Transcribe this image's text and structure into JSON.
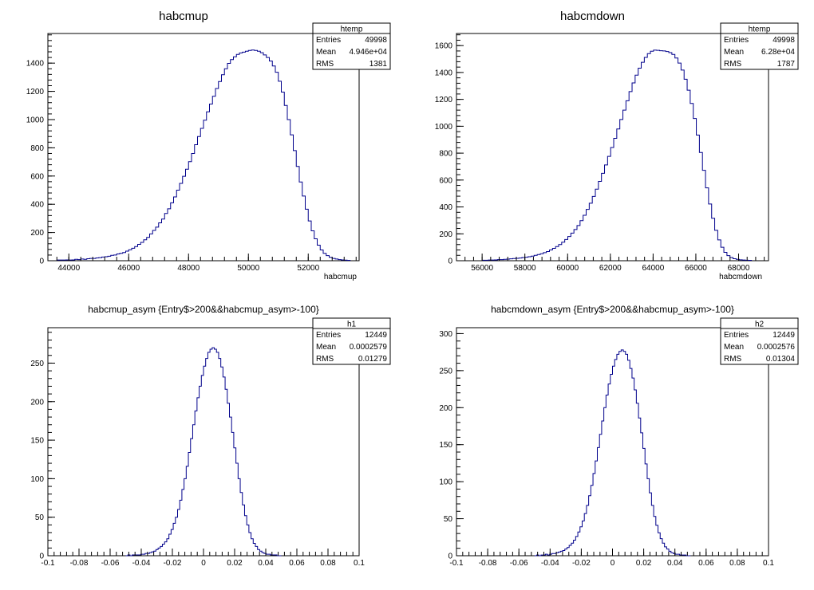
{
  "chart_data": [
    {
      "type": "bar",
      "title": "habcmup",
      "xlabel": "habcmup",
      "ylabel": "",
      "xlim": [
        43300,
        53700
      ],
      "ylim": [
        0,
        1610
      ],
      "xticks": [
        44000,
        46000,
        48000,
        50000,
        52000
      ],
      "yticks": [
        0,
        200,
        400,
        600,
        800,
        1000,
        1200,
        1400
      ],
      "grid": false,
      "line_color": "#00008b",
      "stats": {
        "name": "htemp",
        "rows": [
          {
            "label": "Entries",
            "value": "49998"
          },
          {
            "label": "Mean",
            "value": "4.946e+04"
          },
          {
            "label": "RMS",
            "value": "1381"
          }
        ]
      },
      "bin_range": [
        43600,
        53400
      ],
      "values": [
        5,
        5,
        5,
        6,
        5,
        6,
        10,
        8,
        12,
        10,
        14,
        16,
        16,
        20,
        22,
        26,
        28,
        32,
        38,
        40,
        48,
        52,
        58,
        68,
        78,
        88,
        100,
        116,
        130,
        148,
        165,
        190,
        215,
        238,
        268,
        295,
        335,
        368,
        410,
        452,
        500,
        548,
        598,
        648,
        702,
        760,
        822,
        880,
        938,
        996,
        1055,
        1110,
        1165,
        1220,
        1270,
        1318,
        1360,
        1398,
        1425,
        1445,
        1462,
        1472,
        1478,
        1484,
        1490,
        1493,
        1490,
        1484,
        1474,
        1458,
        1440,
        1415,
        1380,
        1335,
        1272,
        1195,
        1100,
        1000,
        892,
        780,
        668,
        558,
        458,
        365,
        282,
        212,
        155,
        110,
        76,
        52,
        36,
        24,
        16,
        12,
        8,
        6,
        4,
        3
      ]
    },
    {
      "type": "bar",
      "title": "habcmdown",
      "xlabel": "habcmdown",
      "ylabel": "",
      "xlim": [
        54800,
        69400
      ],
      "ylim": [
        0,
        1690
      ],
      "xticks": [
        56000,
        58000,
        60000,
        62000,
        64000,
        66000,
        68000
      ],
      "yticks": [
        0,
        200,
        400,
        600,
        800,
        1000,
        1200,
        1400,
        1600
      ],
      "grid": false,
      "line_color": "#00008b",
      "stats": {
        "name": "htemp",
        "rows": [
          {
            "label": "Entries",
            "value": "49998"
          },
          {
            "label": "Mean",
            "value": "6.28e+04"
          },
          {
            "label": "RMS",
            "value": "1787"
          }
        ]
      },
      "bin_range": [
        56000,
        68600
      ],
      "values": [
        4,
        4,
        5,
        5,
        6,
        8,
        8,
        10,
        12,
        14,
        16,
        18,
        20,
        24,
        26,
        30,
        34,
        40,
        46,
        52,
        60,
        68,
        80,
        92,
        105,
        120,
        138,
        158,
        180,
        205,
        232,
        262,
        298,
        338,
        382,
        428,
        478,
        532,
        590,
        650,
        712,
        776,
        842,
        910,
        980,
        1050,
        1120,
        1190,
        1258,
        1322,
        1380,
        1432,
        1476,
        1512,
        1540,
        1558,
        1566,
        1565,
        1562,
        1560,
        1556,
        1548,
        1534,
        1508,
        1470,
        1418,
        1350,
        1268,
        1170,
        1058,
        935,
        805,
        672,
        542,
        422,
        316,
        226,
        155,
        100,
        62,
        38,
        24,
        15,
        10,
        7,
        5,
        4,
        3
      ]
    },
    {
      "type": "bar",
      "title": "habcmup_asym {Entry$>200&&habcmup_asym>-100}",
      "xlabel": "",
      "ylabel": "",
      "xlim": [
        -0.1,
        0.1
      ],
      "ylim": [
        0,
        296
      ],
      "xticks": [
        -0.1,
        -0.08,
        -0.06,
        -0.04,
        -0.02,
        0,
        0.02,
        0.04,
        0.06,
        0.08,
        0.1
      ],
      "yticks": [
        0,
        50,
        100,
        150,
        200,
        250
      ],
      "grid": false,
      "line_color": "#00008b",
      "stats": {
        "name": "h1",
        "rows": [
          {
            "label": "Entries",
            "value": "12449"
          },
          {
            "label": "Mean",
            "value": "0.0002579"
          },
          {
            "label": "RMS",
            "value": "0.01279"
          }
        ]
      },
      "bin_range": [
        -0.05,
        0.05
      ],
      "values": [
        0,
        1,
        0,
        1,
        1,
        1,
        1,
        2,
        2,
        3,
        3,
        4,
        5,
        6,
        8,
        10,
        12,
        15,
        18,
        22,
        28,
        34,
        42,
        50,
        60,
        72,
        86,
        100,
        116,
        134,
        152,
        170,
        188,
        205,
        220,
        234,
        246,
        256,
        264,
        268,
        270,
        268,
        264,
        256,
        245,
        232,
        216,
        198,
        180,
        160,
        140,
        120,
        100,
        82,
        66,
        52,
        40,
        30,
        22,
        16,
        12,
        8,
        6,
        4,
        3,
        2,
        2,
        1,
        1,
        1,
        0,
        0
      ]
    },
    {
      "type": "bar",
      "title": "habcmdown_asym {Entry$>200&&habcmup_asym>-100}",
      "xlabel": "",
      "ylabel": "",
      "xlim": [
        -0.1,
        0.1
      ],
      "ylim": [
        0,
        308
      ],
      "xticks": [
        -0.1,
        -0.08,
        -0.06,
        -0.04,
        -0.02,
        0,
        0.02,
        0.04,
        0.06,
        0.08,
        0.1
      ],
      "yticks": [
        0,
        50,
        100,
        150,
        200,
        250,
        300
      ],
      "grid": false,
      "line_color": "#00008b",
      "stats": {
        "name": "h2",
        "rows": [
          {
            "label": "Entries",
            "value": "12449"
          },
          {
            "label": "Mean",
            "value": "0.0002576"
          },
          {
            "label": "RMS",
            "value": "0.01304"
          }
        ]
      },
      "bin_range": [
        -0.05,
        0.05
      ],
      "values": [
        0,
        1,
        0,
        1,
        1,
        2,
        1,
        2,
        3,
        3,
        4,
        5,
        6,
        7,
        9,
        11,
        14,
        17,
        21,
        26,
        32,
        39,
        47,
        57,
        68,
        81,
        95,
        111,
        128,
        146,
        164,
        182,
        200,
        217,
        232,
        245,
        256,
        265,
        272,
        276,
        278,
        276,
        272,
        264,
        253,
        240,
        224,
        206,
        186,
        166,
        145,
        124,
        104,
        85,
        68,
        53,
        41,
        31,
        23,
        17,
        12,
        9,
        6,
        4,
        3,
        2,
        2,
        1,
        1,
        1,
        0,
        0
      ]
    }
  ]
}
